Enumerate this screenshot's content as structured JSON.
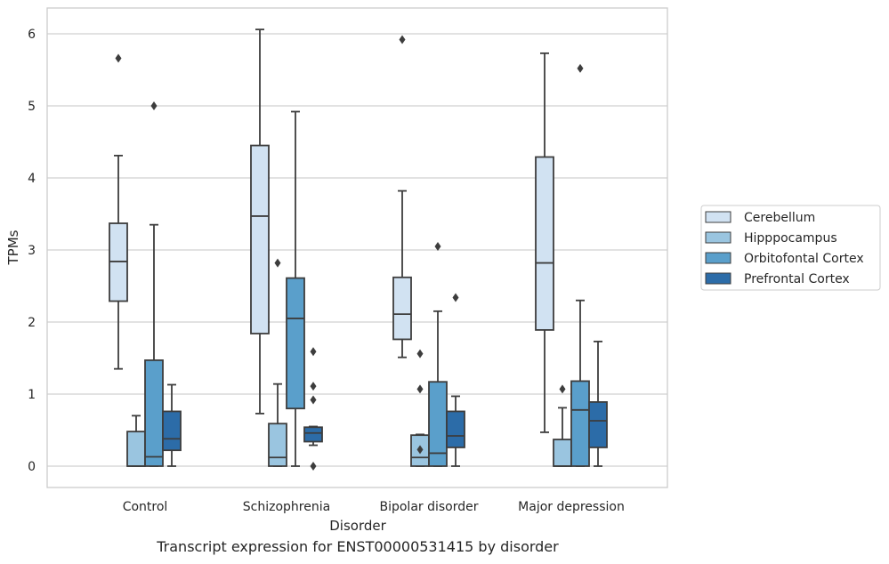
{
  "caption": "Transcript expression for ENST00000531415 by disorder",
  "chart_data": {
    "type": "box",
    "title": "",
    "xlabel": "Disorder",
    "ylabel": "TPMs",
    "ylim": [
      -0.3,
      6.35
    ],
    "yticks": [
      0,
      1,
      2,
      3,
      4,
      5,
      6
    ],
    "grid": "horizontal",
    "legend_position": "right",
    "categories": [
      "Control",
      "Schizophrenia",
      "Bipolar disorder",
      "Major depression"
    ],
    "series": [
      {
        "name": "Cerebellum",
        "color": "#d1e2f2",
        "boxes": [
          {
            "whislo": 1.35,
            "q1": 2.29,
            "med": 2.84,
            "q3": 3.37,
            "whishi": 4.31,
            "fliers": [
              5.66
            ]
          },
          {
            "whislo": 0.73,
            "q1": 1.84,
            "med": 3.47,
            "q3": 4.45,
            "whishi": 6.06,
            "fliers": []
          },
          {
            "whislo": 1.51,
            "q1": 1.76,
            "med": 2.11,
            "q3": 2.62,
            "whishi": 3.82,
            "fliers": [
              5.92
            ]
          },
          {
            "whislo": 0.47,
            "q1": 1.89,
            "med": 2.82,
            "q3": 4.29,
            "whishi": 5.73,
            "fliers": []
          }
        ]
      },
      {
        "name": "Hipppocampus",
        "color": "#9ac5e0",
        "boxes": [
          {
            "whislo": 0.0,
            "q1": 0.0,
            "med": 0.0,
            "q3": 0.48,
            "whishi": 0.7,
            "fliers": []
          },
          {
            "whislo": 0.0,
            "q1": 0.0,
            "med": 0.12,
            "q3": 0.59,
            "whishi": 1.14,
            "fliers": [
              2.82
            ]
          },
          {
            "whislo": 0.0,
            "q1": 0.0,
            "med": 0.12,
            "q3": 0.43,
            "whishi": 0.44,
            "fliers": [
              0.23,
              1.07,
              1.56
            ]
          },
          {
            "whislo": 0.0,
            "q1": 0.0,
            "med": 0.0,
            "q3": 0.37,
            "whishi": 0.81,
            "fliers": [
              1.07
            ]
          }
        ]
      },
      {
        "name": "Orbitofontal Cortex",
        "color": "#5a9fcb",
        "boxes": [
          {
            "whislo": 0.0,
            "q1": 0.0,
            "med": 0.13,
            "q3": 1.47,
            "whishi": 3.35,
            "fliers": [
              5.0
            ]
          },
          {
            "whislo": 0.0,
            "q1": 0.8,
            "med": 2.05,
            "q3": 2.61,
            "whishi": 4.92,
            "fliers": []
          },
          {
            "whislo": 0.0,
            "q1": 0.0,
            "med": 0.18,
            "q3": 1.17,
            "whishi": 2.15,
            "fliers": [
              3.05
            ]
          },
          {
            "whislo": 0.0,
            "q1": 0.0,
            "med": 0.78,
            "q3": 1.18,
            "whishi": 2.3,
            "fliers": [
              5.52
            ]
          }
        ]
      },
      {
        "name": "Prefrontal Cortex",
        "color": "#2c6ca8",
        "boxes": [
          {
            "whislo": 0.0,
            "q1": 0.22,
            "med": 0.38,
            "q3": 0.76,
            "whishi": 1.13,
            "fliers": []
          },
          {
            "whislo": 0.29,
            "q1": 0.34,
            "med": 0.46,
            "q3": 0.54,
            "whishi": 0.55,
            "fliers": [
              0.0,
              0.92,
              1.11,
              1.59
            ]
          },
          {
            "whislo": 0.0,
            "q1": 0.26,
            "med": 0.42,
            "q3": 0.76,
            "whishi": 0.97,
            "fliers": [
              2.34
            ]
          },
          {
            "whislo": 0.0,
            "q1": 0.26,
            "med": 0.63,
            "q3": 0.89,
            "whishi": 1.73,
            "fliers": []
          }
        ]
      }
    ]
  }
}
